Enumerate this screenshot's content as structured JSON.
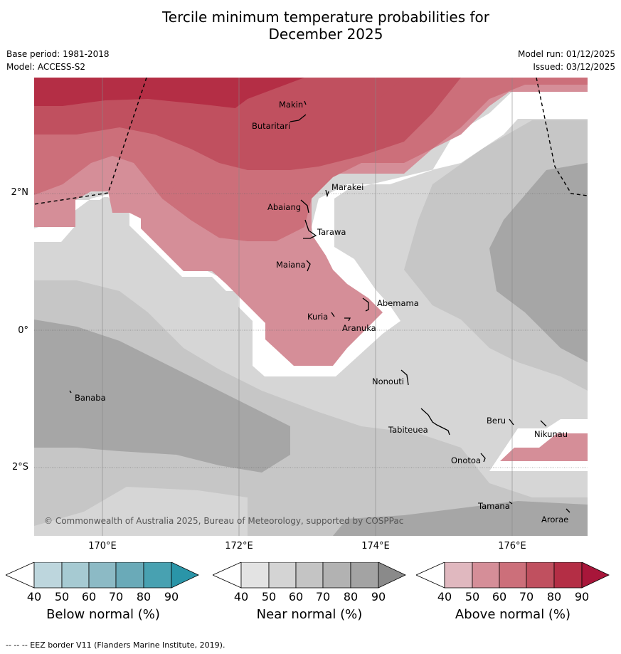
{
  "title_line1": "Tercile minimum temperature probabilities for",
  "title_line2": "December 2025",
  "meta": {
    "base_period": "Base period: 1981-2018",
    "model": "Model: ACCESS-S2",
    "model_run": "Model run: 01/12/2025",
    "issued": "Issued: 03/12/2025"
  },
  "map": {
    "lat_labels": [
      "2°N",
      "0°",
      "2°S"
    ],
    "lon_labels": [
      "170°E",
      "172°E",
      "174°E",
      "176°E"
    ],
    "places": [
      "Makin",
      "Butaritari",
      "Marakei",
      "Abaiang",
      "Tarawa",
      "Maiana",
      "Abemama",
      "Kuria",
      "Aranuka",
      "Nonouti",
      "Banaba",
      "Beru",
      "Nikunau",
      "Tabiteuea",
      "Onotoa",
      "Tamana",
      "Arorae"
    ],
    "copyright": "© Commonwealth of Australia 2025, Bureau of Meteorology, supported by COSPPac"
  },
  "colorbars": [
    {
      "label": "Below normal (%)",
      "ticks": [
        "40",
        "50",
        "60",
        "70",
        "80",
        "90"
      ],
      "colors": [
        "#ffffff",
        "#bdd6dd",
        "#a6cad2",
        "#8cbac5",
        "#6aaab8",
        "#48a1b1",
        "#2a95a8"
      ]
    },
    {
      "label": "Near normal (%)",
      "ticks": [
        "40",
        "50",
        "60",
        "70",
        "80",
        "90"
      ],
      "colors": [
        "#ffffff",
        "#e3e3e3",
        "#d4d4d4",
        "#c4c4c4",
        "#b2b2b2",
        "#a3a3a3",
        "#8a8a8a"
      ]
    },
    {
      "label": "Above normal (%)",
      "ticks": [
        "40",
        "50",
        "60",
        "70",
        "80",
        "90"
      ],
      "colors": [
        "#ffffff",
        "#e0b8bf",
        "#d58e98",
        "#cc6f7a",
        "#c0505f",
        "#b42e45",
        "#a8163a"
      ]
    }
  ],
  "footer": "--  --  -- EEZ border V11 (Flanders Marine Institute, 2019)."
}
